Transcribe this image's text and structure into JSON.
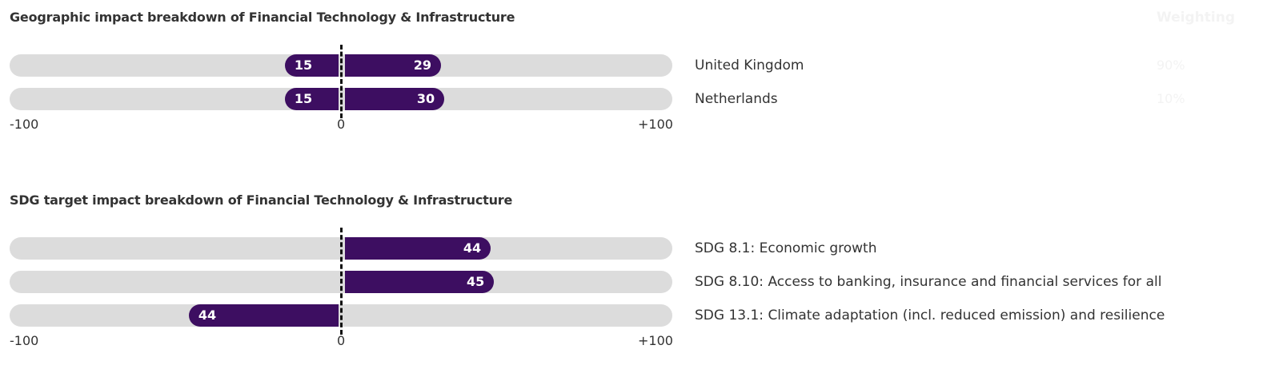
{
  "chart_data": [
    {
      "type": "bar",
      "orientation": "horizontal-diverging",
      "title": "Geographic impact breakdown of Financial Technology & Infrastructure",
      "xlim": [
        -100,
        100
      ],
      "ticks": [
        "-100",
        "0",
        "+100"
      ],
      "weighting_header": "Weighting",
      "categories": [
        "United Kingdom",
        "Netherlands"
      ],
      "negative": [
        15,
        15
      ],
      "positive": [
        29,
        30
      ],
      "weights": [
        "90%",
        "10%"
      ]
    },
    {
      "type": "bar",
      "orientation": "horizontal-diverging",
      "title": "SDG target impact breakdown of Financial Technology & Infrastructure",
      "xlim": [
        -100,
        100
      ],
      "ticks": [
        "-100",
        "0",
        "+100"
      ],
      "categories": [
        "SDG 8.1: Economic growth",
        "SDG 8.10: Access to banking, insurance and financial services for all",
        "SDG 13.1: Climate adaptation (incl. reduced emission) and resilience"
      ],
      "negative": [
        null,
        null,
        44
      ],
      "positive": [
        44,
        45,
        null
      ]
    }
  ],
  "colors": {
    "bar": "#3d0e61",
    "track": "#dcdcdc",
    "zero_line": "#111111"
  }
}
